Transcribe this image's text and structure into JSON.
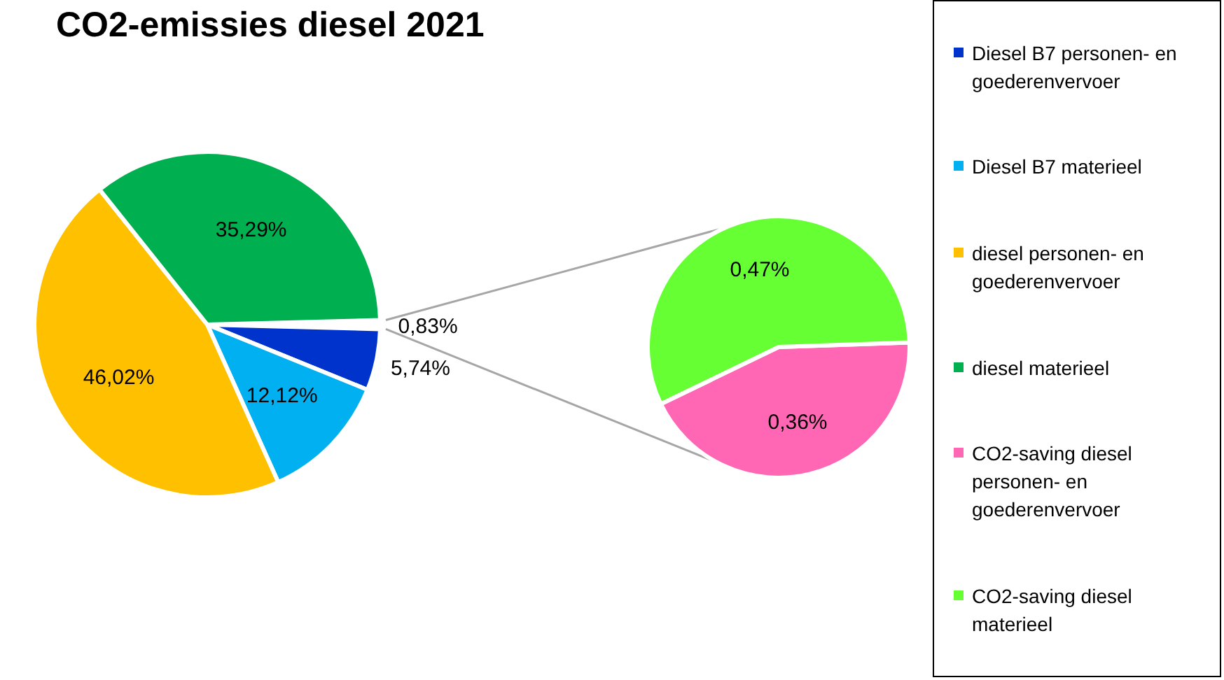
{
  "chart_data": {
    "type": "pie",
    "title": "CO2-emissies diesel 2021",
    "categories": [
      "Diesel B7 personen- en goederenvervoer",
      "Diesel B7 materieel",
      "diesel personen- en goederenvervoer",
      "diesel materieel",
      "CO2-saving diesel personen- en goederenvervoer",
      "CO2-saving diesel materieel"
    ],
    "colors": [
      "#0033cc",
      "#00b0f0",
      "#ffc000",
      "#00b050",
      "#ff66b3",
      "#66ff33"
    ],
    "series": [
      {
        "values": [
          5.74,
          12.12,
          46.02,
          35.29,
          null,
          null
        ],
        "value_labels": [
          "5,74%",
          "12,12%",
          "46,02%",
          "35,29%",
          null,
          null
        ]
      },
      {
        "values": [
          null,
          null,
          null,
          null,
          0.36,
          0.47
        ],
        "value_labels": [
          null,
          null,
          null,
          null,
          "0,36%",
          "0,47%"
        ]
      }
    ],
    "annotations": [
      "0,83%"
    ],
    "legend": "right"
  }
}
